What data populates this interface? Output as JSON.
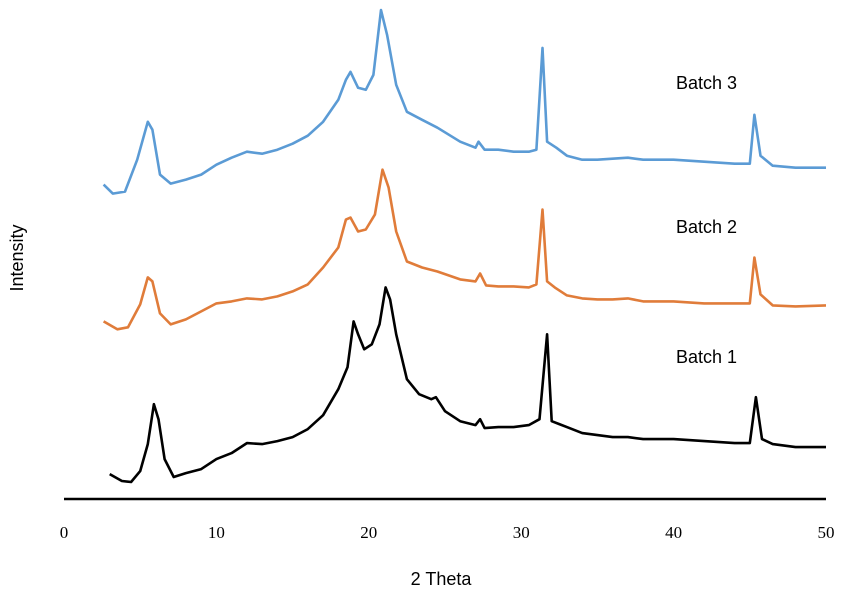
{
  "chart_data": {
    "type": "line",
    "xlabel": "2 Theta",
    "ylabel": "Intensity",
    "xlim": [
      0,
      50
    ],
    "xticks": [
      0,
      10,
      20,
      30,
      40,
      50
    ],
    "ylim": [
      0,
      500
    ],
    "grid": false,
    "legend": "inline labels to the right of each trace",
    "series": [
      {
        "name": "Batch 1",
        "color": "#000000",
        "points": [
          [
            3.0,
            25
          ],
          [
            3.8,
            18
          ],
          [
            4.4,
            17
          ],
          [
            5.0,
            28
          ],
          [
            5.5,
            55
          ],
          [
            5.9,
            95
          ],
          [
            6.2,
            80
          ],
          [
            6.6,
            40
          ],
          [
            7.2,
            22
          ],
          [
            8.0,
            26
          ],
          [
            9.0,
            30
          ],
          [
            10.0,
            40
          ],
          [
            11.0,
            46
          ],
          [
            12.0,
            56
          ],
          [
            13.0,
            55
          ],
          [
            14.0,
            58
          ],
          [
            15.0,
            62
          ],
          [
            16.0,
            70
          ],
          [
            17.0,
            84
          ],
          [
            18.0,
            110
          ],
          [
            18.6,
            132
          ],
          [
            19.0,
            178
          ],
          [
            19.3,
            165
          ],
          [
            19.7,
            150
          ],
          [
            20.2,
            155
          ],
          [
            20.7,
            175
          ],
          [
            21.1,
            212
          ],
          [
            21.4,
            200
          ],
          [
            21.8,
            165
          ],
          [
            22.5,
            120
          ],
          [
            23.3,
            105
          ],
          [
            24.1,
            100
          ],
          [
            24.4,
            102
          ],
          [
            25.0,
            88
          ],
          [
            26.0,
            78
          ],
          [
            27.0,
            74
          ],
          [
            27.3,
            80
          ],
          [
            27.6,
            71
          ],
          [
            28.5,
            72
          ],
          [
            29.5,
            72
          ],
          [
            30.5,
            74
          ],
          [
            31.2,
            80
          ],
          [
            31.7,
            165
          ],
          [
            32.0,
            78
          ],
          [
            32.5,
            75
          ],
          [
            33.0,
            72
          ],
          [
            34.0,
            66
          ],
          [
            35.0,
            64
          ],
          [
            36.0,
            62
          ],
          [
            37.0,
            62
          ],
          [
            38.0,
            60
          ],
          [
            40.0,
            60
          ],
          [
            42.0,
            58
          ],
          [
            44.0,
            56
          ],
          [
            45.0,
            56
          ],
          [
            45.4,
            102
          ],
          [
            45.8,
            60
          ],
          [
            46.5,
            55
          ],
          [
            48.0,
            52
          ],
          [
            50.0,
            52
          ]
        ]
      },
      {
        "name": "Batch 2",
        "color": "#e07c3a",
        "points": [
          [
            2.6,
            178
          ],
          [
            3.5,
            170
          ],
          [
            4.2,
            172
          ],
          [
            5.0,
            195
          ],
          [
            5.5,
            222
          ],
          [
            5.8,
            218
          ],
          [
            6.3,
            186
          ],
          [
            7.0,
            175
          ],
          [
            8.0,
            180
          ],
          [
            9.0,
            188
          ],
          [
            10.0,
            196
          ],
          [
            11.0,
            198
          ],
          [
            12.0,
            201
          ],
          [
            13.0,
            200
          ],
          [
            14.0,
            203
          ],
          [
            15.0,
            208
          ],
          [
            16.0,
            215
          ],
          [
            17.0,
            232
          ],
          [
            18.0,
            252
          ],
          [
            18.5,
            280
          ],
          [
            18.8,
            282
          ],
          [
            19.3,
            268
          ],
          [
            19.8,
            270
          ],
          [
            20.4,
            285
          ],
          [
            20.9,
            330
          ],
          [
            21.3,
            312
          ],
          [
            21.8,
            268
          ],
          [
            22.5,
            238
          ],
          [
            23.5,
            232
          ],
          [
            24.5,
            228
          ],
          [
            26.0,
            220
          ],
          [
            27.0,
            218
          ],
          [
            27.3,
            226
          ],
          [
            27.7,
            214
          ],
          [
            28.5,
            213
          ],
          [
            29.5,
            213
          ],
          [
            30.5,
            212
          ],
          [
            31.0,
            215
          ],
          [
            31.4,
            290
          ],
          [
            31.7,
            218
          ],
          [
            32.2,
            212
          ],
          [
            33.0,
            204
          ],
          [
            34.0,
            201
          ],
          [
            35.0,
            200
          ],
          [
            36.0,
            200
          ],
          [
            37.0,
            201
          ],
          [
            38.0,
            198
          ],
          [
            40.0,
            198
          ],
          [
            42.0,
            196
          ],
          [
            44.0,
            196
          ],
          [
            45.0,
            196
          ],
          [
            45.3,
            242
          ],
          [
            45.7,
            205
          ],
          [
            46.5,
            194
          ],
          [
            48.0,
            193
          ],
          [
            50.0,
            194
          ]
        ]
      },
      {
        "name": "Batch 3",
        "color": "#5b9bd5",
        "points": [
          [
            2.6,
            315
          ],
          [
            3.2,
            306
          ],
          [
            4.0,
            308
          ],
          [
            4.8,
            340
          ],
          [
            5.5,
            378
          ],
          [
            5.8,
            370
          ],
          [
            6.3,
            325
          ],
          [
            7.0,
            316
          ],
          [
            8.0,
            320
          ],
          [
            9.0,
            325
          ],
          [
            10.0,
            335
          ],
          [
            11.0,
            342
          ],
          [
            12.0,
            348
          ],
          [
            13.0,
            346
          ],
          [
            14.0,
            350
          ],
          [
            15.0,
            356
          ],
          [
            16.0,
            364
          ],
          [
            17.0,
            378
          ],
          [
            18.0,
            400
          ],
          [
            18.5,
            420
          ],
          [
            18.8,
            428
          ],
          [
            19.3,
            412
          ],
          [
            19.8,
            410
          ],
          [
            20.3,
            425
          ],
          [
            20.8,
            490
          ],
          [
            21.2,
            465
          ],
          [
            21.8,
            415
          ],
          [
            22.5,
            388
          ],
          [
            23.5,
            380
          ],
          [
            24.5,
            372
          ],
          [
            26.0,
            358
          ],
          [
            27.0,
            352
          ],
          [
            27.2,
            358
          ],
          [
            27.6,
            350
          ],
          [
            28.5,
            350
          ],
          [
            29.5,
            348
          ],
          [
            30.5,
            348
          ],
          [
            31.0,
            350
          ],
          [
            31.4,
            452
          ],
          [
            31.7,
            358
          ],
          [
            32.3,
            352
          ],
          [
            33.0,
            344
          ],
          [
            34.0,
            340
          ],
          [
            35.0,
            340
          ],
          [
            36.0,
            341
          ],
          [
            37.0,
            342
          ],
          [
            38.0,
            340
          ],
          [
            40.0,
            340
          ],
          [
            42.0,
            338
          ],
          [
            44.0,
            336
          ],
          [
            45.0,
            336
          ],
          [
            45.3,
            385
          ],
          [
            45.7,
            344
          ],
          [
            46.5,
            334
          ],
          [
            48.0,
            332
          ],
          [
            50.0,
            332
          ]
        ]
      }
    ]
  }
}
